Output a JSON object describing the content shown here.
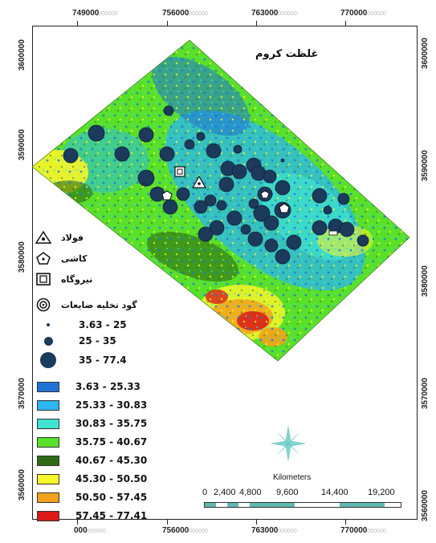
{
  "map": {
    "title": "غلظت کروم",
    "x_ticks": [
      "749000",
      "756000",
      "763000",
      "770000"
    ],
    "x_ticks_bottom": [
      "000",
      "756000",
      "763000",
      "770000"
    ],
    "y_ticks_left": [
      "3600000",
      "3590000",
      "3580000",
      "3570000",
      "3560000"
    ],
    "y_ticks_right": [
      "3600000",
      "3590000",
      "3580000",
      "3570000",
      "3560000"
    ],
    "tick_ghost_suffix": "000000"
  },
  "symbols": [
    {
      "label": "فولاد",
      "icon": "triangle-dot-icon"
    },
    {
      "label": "کاشی",
      "icon": "pentagon-icon"
    },
    {
      "label": "نیروگاه",
      "icon": "power-plant-square-icon"
    },
    {
      "label": "گود تخلیه ضایعات",
      "icon": "concentric-circle-icon"
    }
  ],
  "point_classes": [
    {
      "label": "3.63 - 25",
      "color": "#1c3a5c"
    },
    {
      "label": "25 - 35",
      "color": "#1c3a5c"
    },
    {
      "label": "35  - 77.4",
      "color": "#1c3a5c"
    }
  ],
  "raster_classes": [
    {
      "label": "3.63 - 25.33",
      "color": "#1f73d6"
    },
    {
      "label": "25.33 - 30.83",
      "color": "#2bb7f0"
    },
    {
      "label": "30.83 - 35.75",
      "color": "#3fe3cf"
    },
    {
      "label": "35.75 - 40.67",
      "color": "#59e02a"
    },
    {
      "label": "40.67 - 45.30",
      "color": "#2f6b12"
    },
    {
      "label": "45.30 - 50.50",
      "color": "#f5f52a"
    },
    {
      "label": "50.50 - 57.45",
      "color": "#f2a21c"
    },
    {
      "label": "57.45 - 77.41",
      "color": "#dd1a1a"
    }
  ],
  "scale": {
    "title": "Kilometers",
    "labels": [
      "0",
      "2,400",
      "4,800",
      "9,600",
      "14,400",
      "19,200"
    ]
  },
  "north_arrow": {
    "icon": "compass-rose-icon"
  }
}
